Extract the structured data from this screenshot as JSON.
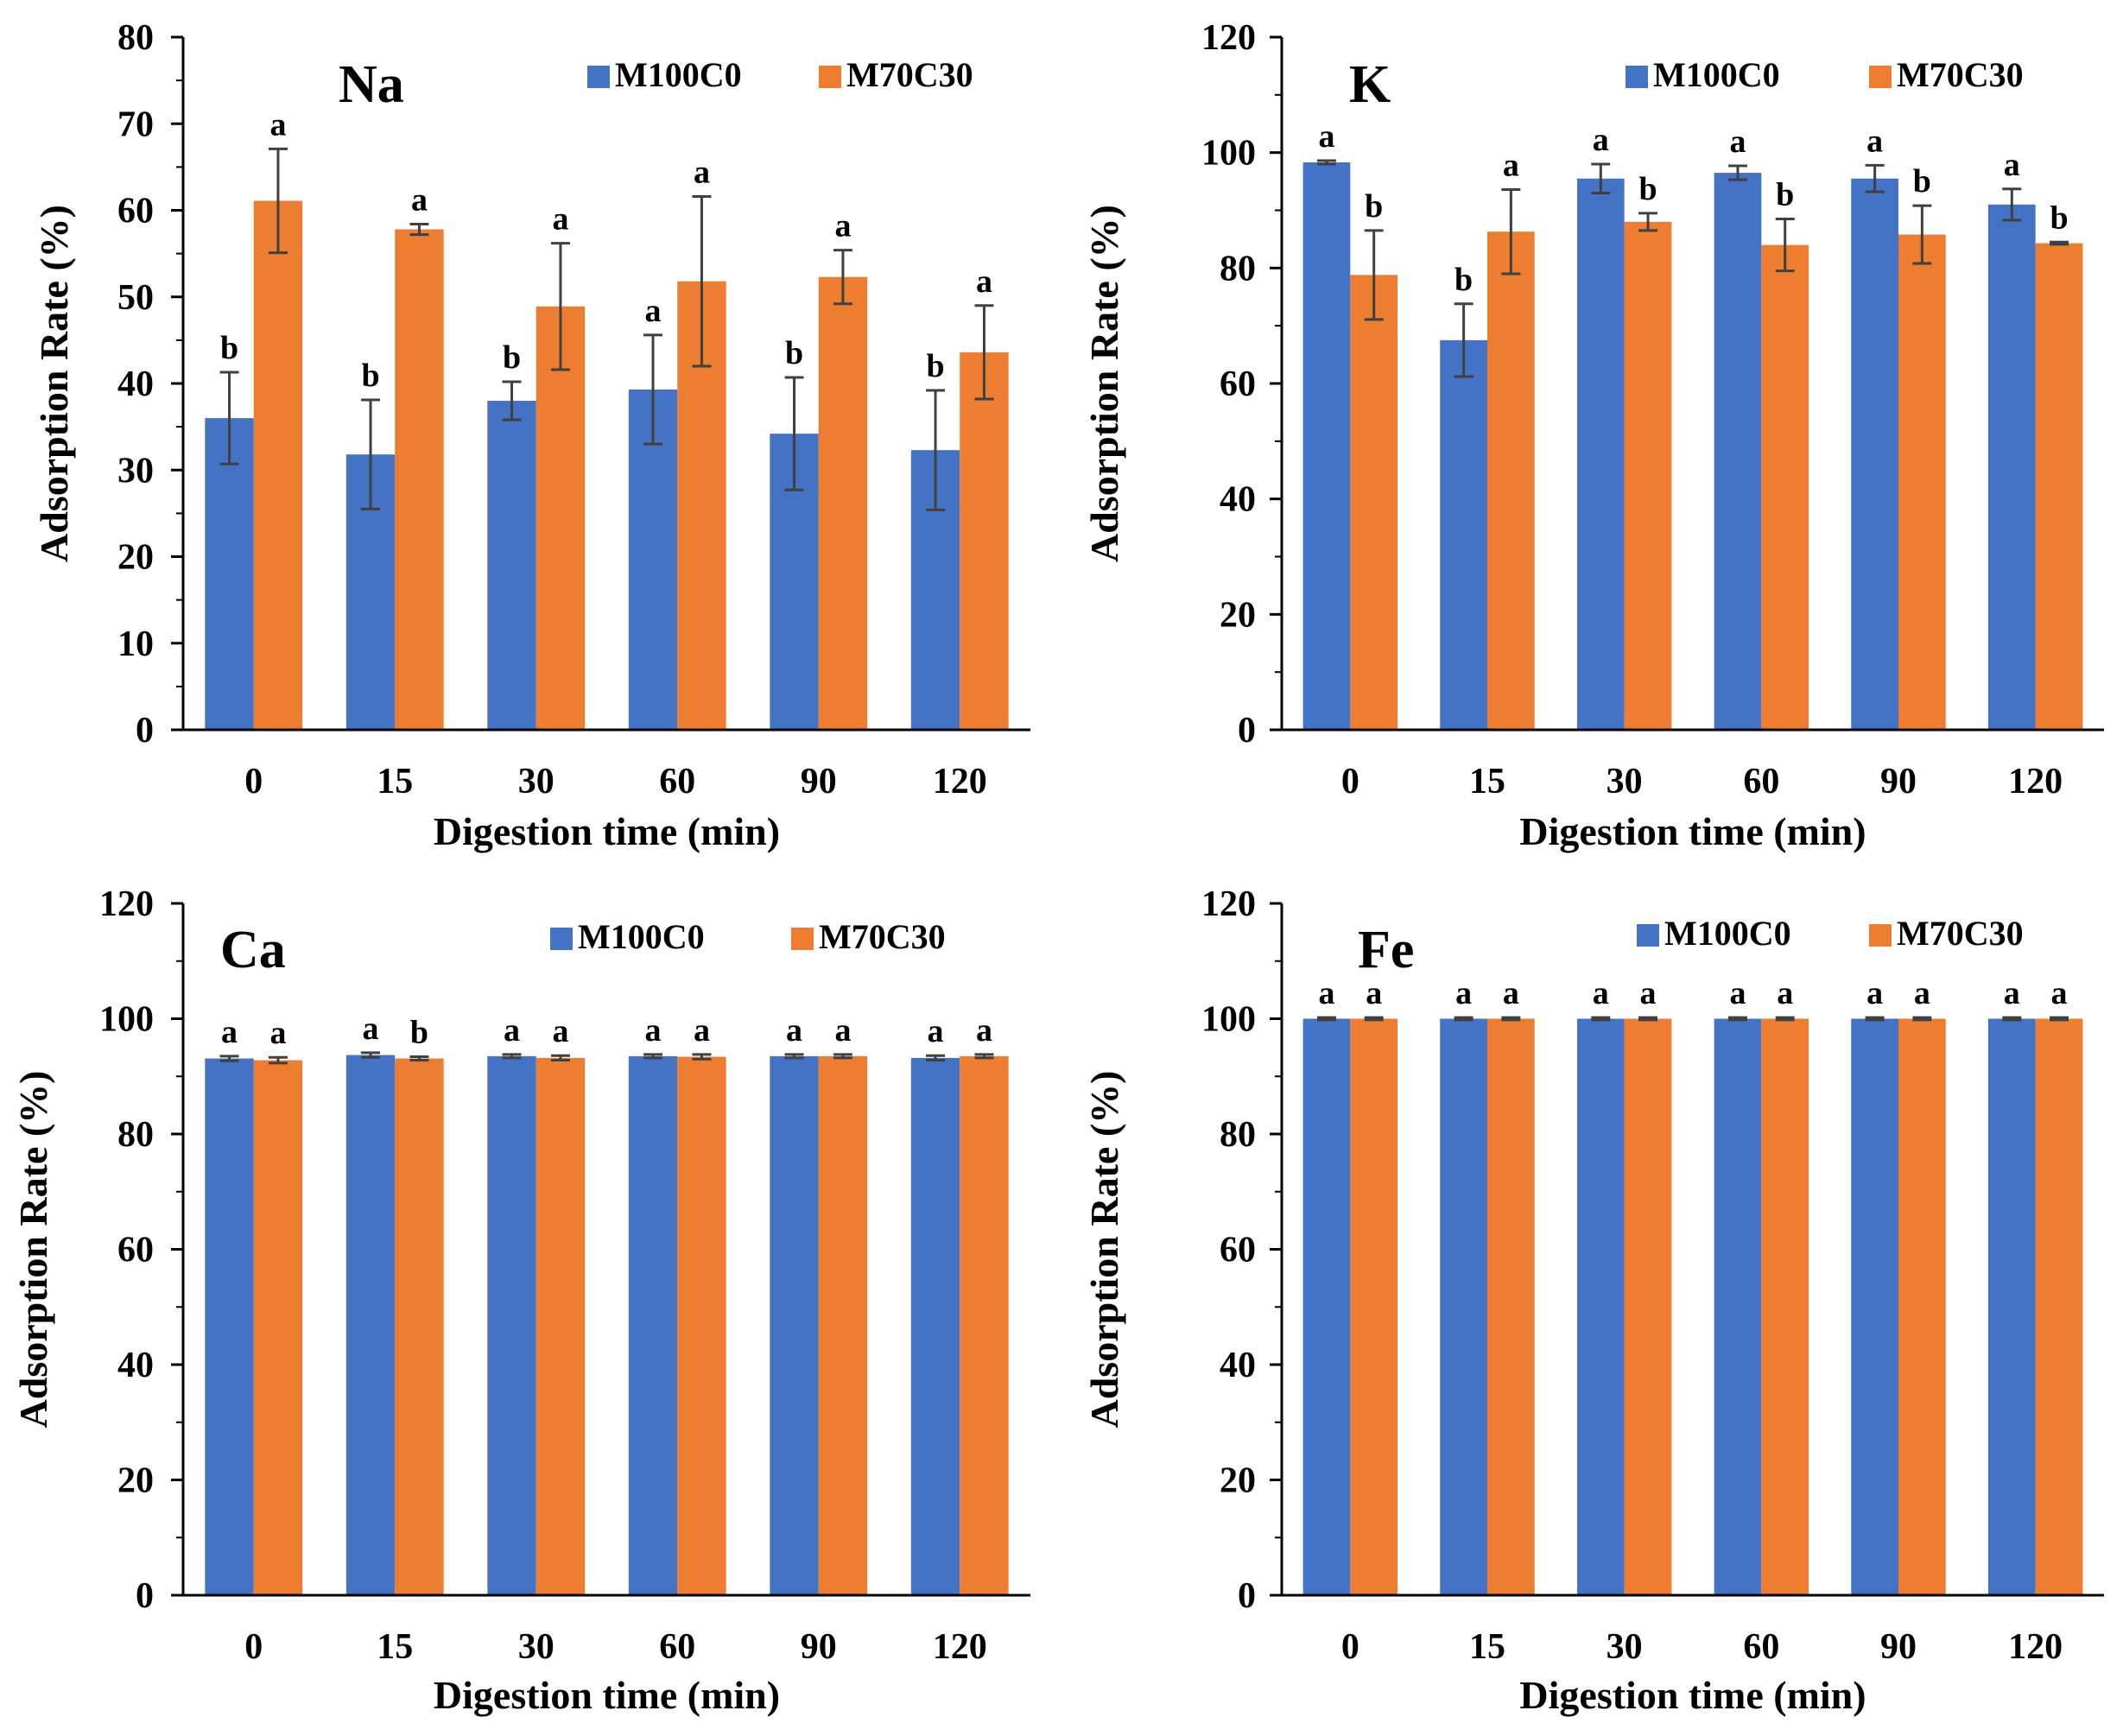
{
  "figure": {
    "colors": {
      "M100C0": "#4472C4",
      "M70C30": "#ED7D31",
      "error_bar": "#404040",
      "axis": "#000000"
    }
  },
  "chart_data": [
    {
      "type": "bar",
      "title": "Na",
      "xlabel": "Digestion time (min)",
      "ylabel": "Adsorption Rate (%)",
      "ylim": [
        0,
        80
      ],
      "yticks": [
        0,
        10,
        20,
        30,
        40,
        50,
        60,
        70,
        80
      ],
      "categories": [
        "0",
        "15",
        "30",
        "60",
        "90",
        "120"
      ],
      "series": [
        {
          "name": "M100C0",
          "values": [
            36.0,
            31.8,
            38.0,
            39.3,
            34.2,
            32.3
          ],
          "errors": [
            5.3,
            6.3,
            2.2,
            6.3,
            6.5,
            6.9
          ],
          "labels": [
            "b",
            "b",
            "b",
            "a",
            "b",
            "b"
          ]
        },
        {
          "name": "M70C30",
          "values": [
            61.1,
            57.8,
            48.9,
            51.8,
            52.3,
            43.6
          ],
          "errors": [
            6.0,
            0.6,
            7.3,
            9.8,
            3.1,
            5.4
          ],
          "labels": [
            "a",
            "a",
            "a",
            "a",
            "a",
            "a"
          ]
        }
      ]
    },
    {
      "type": "bar",
      "title": "K",
      "xlabel": "Digestion time (min)",
      "ylabel": "Adsorption Rate (%)",
      "ylim": [
        0,
        120
      ],
      "yticks": [
        0,
        20,
        40,
        60,
        80,
        100,
        120
      ],
      "categories": [
        "0",
        "15",
        "30",
        "60",
        "90",
        "120"
      ],
      "series": [
        {
          "name": "M100C0",
          "values": [
            98.3,
            67.5,
            95.5,
            96.5,
            95.5,
            91.0
          ],
          "errors": [
            0.3,
            6.3,
            2.5,
            1.2,
            2.3,
            2.7
          ],
          "labels": [
            "a",
            "b",
            "a",
            "a",
            "a",
            "a"
          ]
        },
        {
          "name": "M70C30",
          "values": [
            78.8,
            86.3,
            88.0,
            84.0,
            85.8,
            84.3
          ],
          "errors": [
            7.7,
            7.3,
            1.5,
            4.5,
            5.0,
            0.2
          ],
          "labels": [
            "b",
            "a",
            "b",
            "b",
            "b",
            "b"
          ]
        }
      ]
    },
    {
      "type": "bar",
      "title": "Ca",
      "xlabel": "Digestion time (min)",
      "ylabel": "Adsorption Rate (%)",
      "ylim": [
        0,
        120
      ],
      "yticks": [
        0,
        20,
        40,
        60,
        80,
        100,
        120
      ],
      "categories": [
        "0",
        "15",
        "30",
        "60",
        "90",
        "120"
      ],
      "series": [
        {
          "name": "M100C0",
          "values": [
            93.1,
            93.7,
            93.5,
            93.5,
            93.5,
            93.2
          ],
          "errors": [
            0.4,
            0.4,
            0.3,
            0.3,
            0.3,
            0.4
          ],
          "labels": [
            "a",
            "a",
            "a",
            "a",
            "a",
            "a"
          ]
        },
        {
          "name": "M70C30",
          "values": [
            92.8,
            93.1,
            93.2,
            93.4,
            93.5,
            93.5
          ],
          "errors": [
            0.5,
            0.3,
            0.4,
            0.4,
            0.3,
            0.3
          ],
          "labels": [
            "a",
            "b",
            "a",
            "a",
            "a",
            "a"
          ]
        }
      ]
    },
    {
      "type": "bar",
      "title": "Fe",
      "xlabel": "Digestion time (min)",
      "ylabel": "Adsorption Rate (%)",
      "ylim": [
        0,
        120
      ],
      "yticks": [
        0,
        20,
        40,
        60,
        80,
        100,
        120
      ],
      "categories": [
        "0",
        "15",
        "30",
        "60",
        "90",
        "120"
      ],
      "series": [
        {
          "name": "M100C0",
          "values": [
            100,
            100,
            100,
            100,
            100,
            100
          ],
          "errors": [
            0.2,
            0.2,
            0.2,
            0.2,
            0.2,
            0.2
          ],
          "labels": [
            "a",
            "a",
            "a",
            "a",
            "a",
            "a"
          ]
        },
        {
          "name": "M70C30",
          "values": [
            100,
            100,
            100,
            100,
            100,
            100
          ],
          "errors": [
            0.2,
            0.2,
            0.2,
            0.2,
            0.2,
            0.2
          ],
          "labels": [
            "a",
            "a",
            "a",
            "a",
            "a",
            "a"
          ]
        }
      ]
    }
  ]
}
